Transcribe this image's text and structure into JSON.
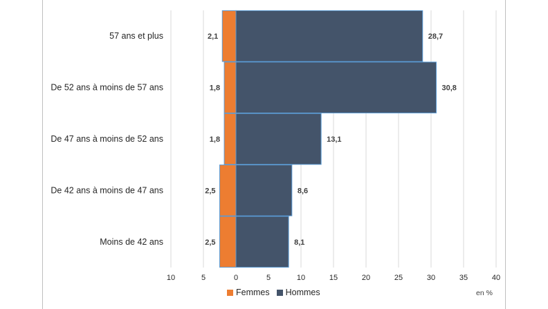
{
  "chart_data": {
    "type": "bar",
    "orientation": "horizontal-diverging",
    "categories": [
      "57 ans et plus",
      "De 52 ans à moins de 57 ans",
      "De 47 ans à moins de 52 ans",
      "De 42 ans à moins de 47 ans",
      "Moins de 42 ans"
    ],
    "series": [
      {
        "name": "Femmes",
        "color": "#ed7d31",
        "values": [
          2.1,
          1.8,
          1.8,
          2.5,
          2.5
        ],
        "labels": [
          "2,1",
          "1,8",
          "1,8",
          "2,5",
          "2,5"
        ]
      },
      {
        "name": "Hommes",
        "color": "#44546a",
        "values": [
          28.7,
          30.8,
          13.1,
          8.6,
          8.1
        ],
        "labels": [
          "28,7",
          "30,8",
          "13,1",
          "8,6",
          "8,1"
        ]
      }
    ],
    "xlim": [
      -10,
      40
    ],
    "xticks": [
      "10",
      "5",
      "0",
      "5",
      "10",
      "15",
      "20",
      "25",
      "30",
      "35",
      "40"
    ],
    "unit": "en %",
    "grid": true,
    "legend_position": "bottom"
  }
}
